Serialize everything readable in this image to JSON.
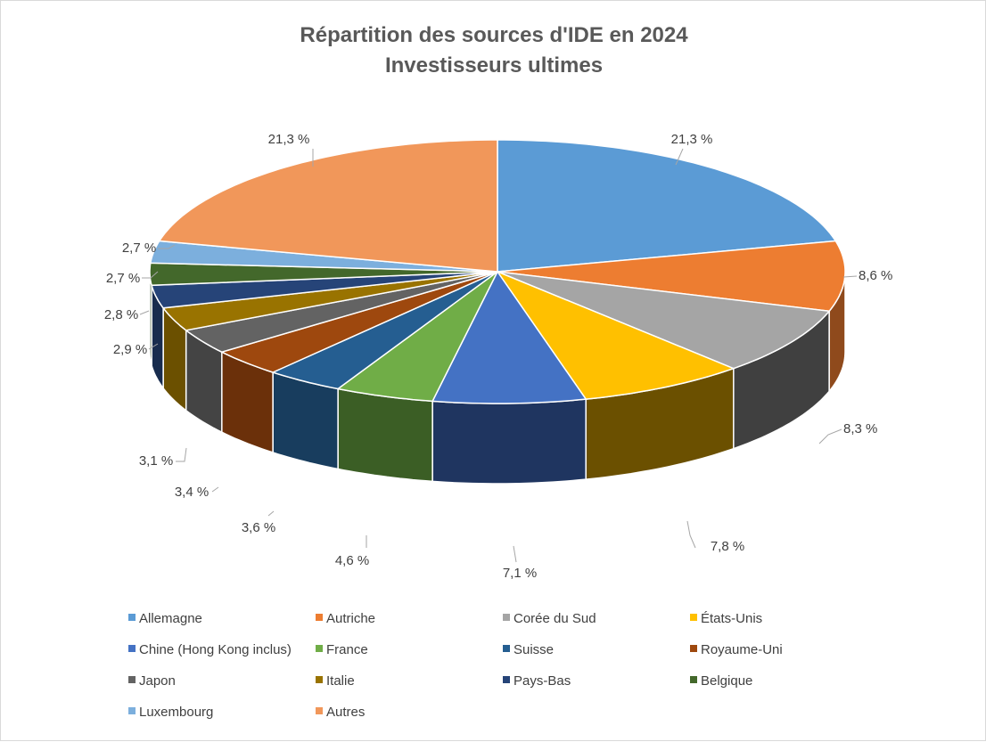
{
  "chart_data": {
    "type": "pie",
    "title": "Répartition des sources d'IDE en 2024",
    "subtitle": "Investisseurs ultimes",
    "legend_position": "bottom",
    "slices": [
      {
        "name": "Allemagne",
        "value": 21.3,
        "label": "21,3 %",
        "color": "#5b9bd5",
        "side": "#2e4d6b"
      },
      {
        "name": "Autriche",
        "value": 8.6,
        "label": "8,6 %",
        "color": "#ed7d31",
        "side": "#8f4a1c"
      },
      {
        "name": "Corée du Sud",
        "value": 8.3,
        "label": "8,3 %",
        "color": "#a5a5a5",
        "side": "#404040"
      },
      {
        "name": "États-Unis",
        "value": 7.8,
        "label": "7,8 %",
        "color": "#ffc000",
        "side": "#6b5000"
      },
      {
        "name": "Chine (Hong Kong inclus)",
        "value": 7.1,
        "label": "7,1 %",
        "color": "#4472c4",
        "side": "#1f3560"
      },
      {
        "name": "France",
        "value": 4.6,
        "label": "4,6 %",
        "color": "#70ad47",
        "side": "#3b5e25"
      },
      {
        "name": "Suisse",
        "value": 3.6,
        "label": "3,6 %",
        "color": "#255e91",
        "side": "#183d5e"
      },
      {
        "name": "Royaume-Uni",
        "value": 3.4,
        "label": "3,4 %",
        "color": "#9e480e",
        "side": "#6b300a"
      },
      {
        "name": "Japon",
        "value": 3.1,
        "label": "3,1 %",
        "color": "#636363",
        "side": "#444444"
      },
      {
        "name": "Italie",
        "value": 2.9,
        "label": "2,9 %",
        "color": "#997300",
        "side": "#6b5000"
      },
      {
        "name": "Pays-Bas",
        "value": 2.8,
        "label": "2,8 %",
        "color": "#264478",
        "side": "#182c4e"
      },
      {
        "name": "Belgique",
        "value": 2.7,
        "label": "2,7 %",
        "color": "#43682b",
        "side": "#2c451c"
      },
      {
        "name": "Luxembourg",
        "value": 2.7,
        "label": "2,7 %",
        "color": "#7cafdd",
        "side": "#4d7396"
      },
      {
        "name": "Autres",
        "value": 21.3,
        "label": "21,3 %",
        "color": "#f1975a",
        "side": "#a0613a"
      }
    ]
  }
}
